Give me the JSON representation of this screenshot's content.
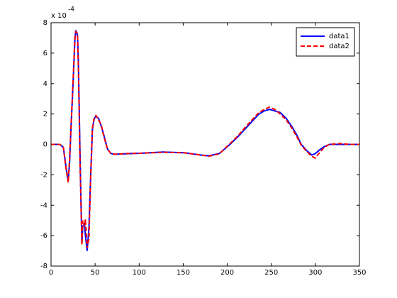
{
  "chart_data": {
    "type": "line",
    "y_exponent": {
      "base": "x 10",
      "power": "-4"
    },
    "x": [
      0,
      10,
      14,
      17,
      19.5,
      21,
      23,
      25,
      27,
      28,
      30,
      31,
      33,
      35,
      36,
      38,
      39,
      41,
      43,
      45,
      47,
      49,
      51,
      54,
      57,
      60,
      64,
      68,
      72,
      85,
      103,
      127,
      151,
      170,
      179,
      191,
      203,
      212,
      220,
      228,
      236,
      242,
      248,
      254,
      260,
      267,
      273,
      279,
      284,
      290,
      296,
      300,
      304,
      310,
      316,
      328,
      340,
      350
    ],
    "series": [
      {
        "name": "data1",
        "color": "#0000ff",
        "dashed": false,
        "values": [
          0,
          0,
          -0.2,
          -1.5,
          -2.4,
          -1.2,
          1.5,
          4.0,
          6.8,
          7.5,
          7.2,
          5.5,
          -1,
          -6.5,
          -5.4,
          -5.2,
          -6,
          -7,
          -5.5,
          -2,
          1.0,
          1.7,
          1.85,
          1.7,
          1.2,
          0.6,
          -0.3,
          -0.6,
          -0.65,
          -0.62,
          -0.58,
          -0.5,
          -0.55,
          -0.7,
          -0.75,
          -0.6,
          0,
          0.5,
          1.0,
          1.5,
          2.0,
          2.2,
          2.3,
          2.2,
          2.1,
          1.7,
          1.2,
          0.6,
          0,
          -0.4,
          -0.7,
          -0.6,
          -0.4,
          -0.15,
          0,
          0,
          0,
          0
        ]
      },
      {
        "name": "data2",
        "color": "#ff0000",
        "dashed": true,
        "values": [
          0,
          0,
          -0.2,
          -1.6,
          -2.5,
          -1.0,
          1.6,
          4.2,
          7.0,
          7.4,
          7.3,
          5.0,
          -1.5,
          -6.6,
          -5.0,
          -5.4,
          -4.9,
          -6.8,
          -6.2,
          -2.2,
          1.1,
          1.8,
          1.9,
          1.6,
          1.3,
          0.5,
          -0.3,
          -0.6,
          -0.65,
          -0.6,
          -0.58,
          -0.52,
          -0.55,
          -0.7,
          -0.78,
          -0.62,
          0.05,
          0.55,
          1.1,
          1.6,
          2.1,
          2.3,
          2.45,
          2.3,
          2.0,
          1.6,
          1.1,
          0.5,
          -0.05,
          -0.45,
          -0.8,
          -0.9,
          -0.6,
          -0.2,
          0,
          0.05,
          0,
          0
        ]
      }
    ],
    "xlim": [
      0,
      350
    ],
    "xticks": [
      0,
      50,
      100,
      150,
      200,
      250,
      300,
      350
    ],
    "ylim": [
      -8,
      8
    ],
    "yticks": [
      -8,
      -6,
      -4,
      -2,
      0,
      2,
      4,
      6,
      8
    ],
    "grid": false,
    "legend": "northeast"
  }
}
